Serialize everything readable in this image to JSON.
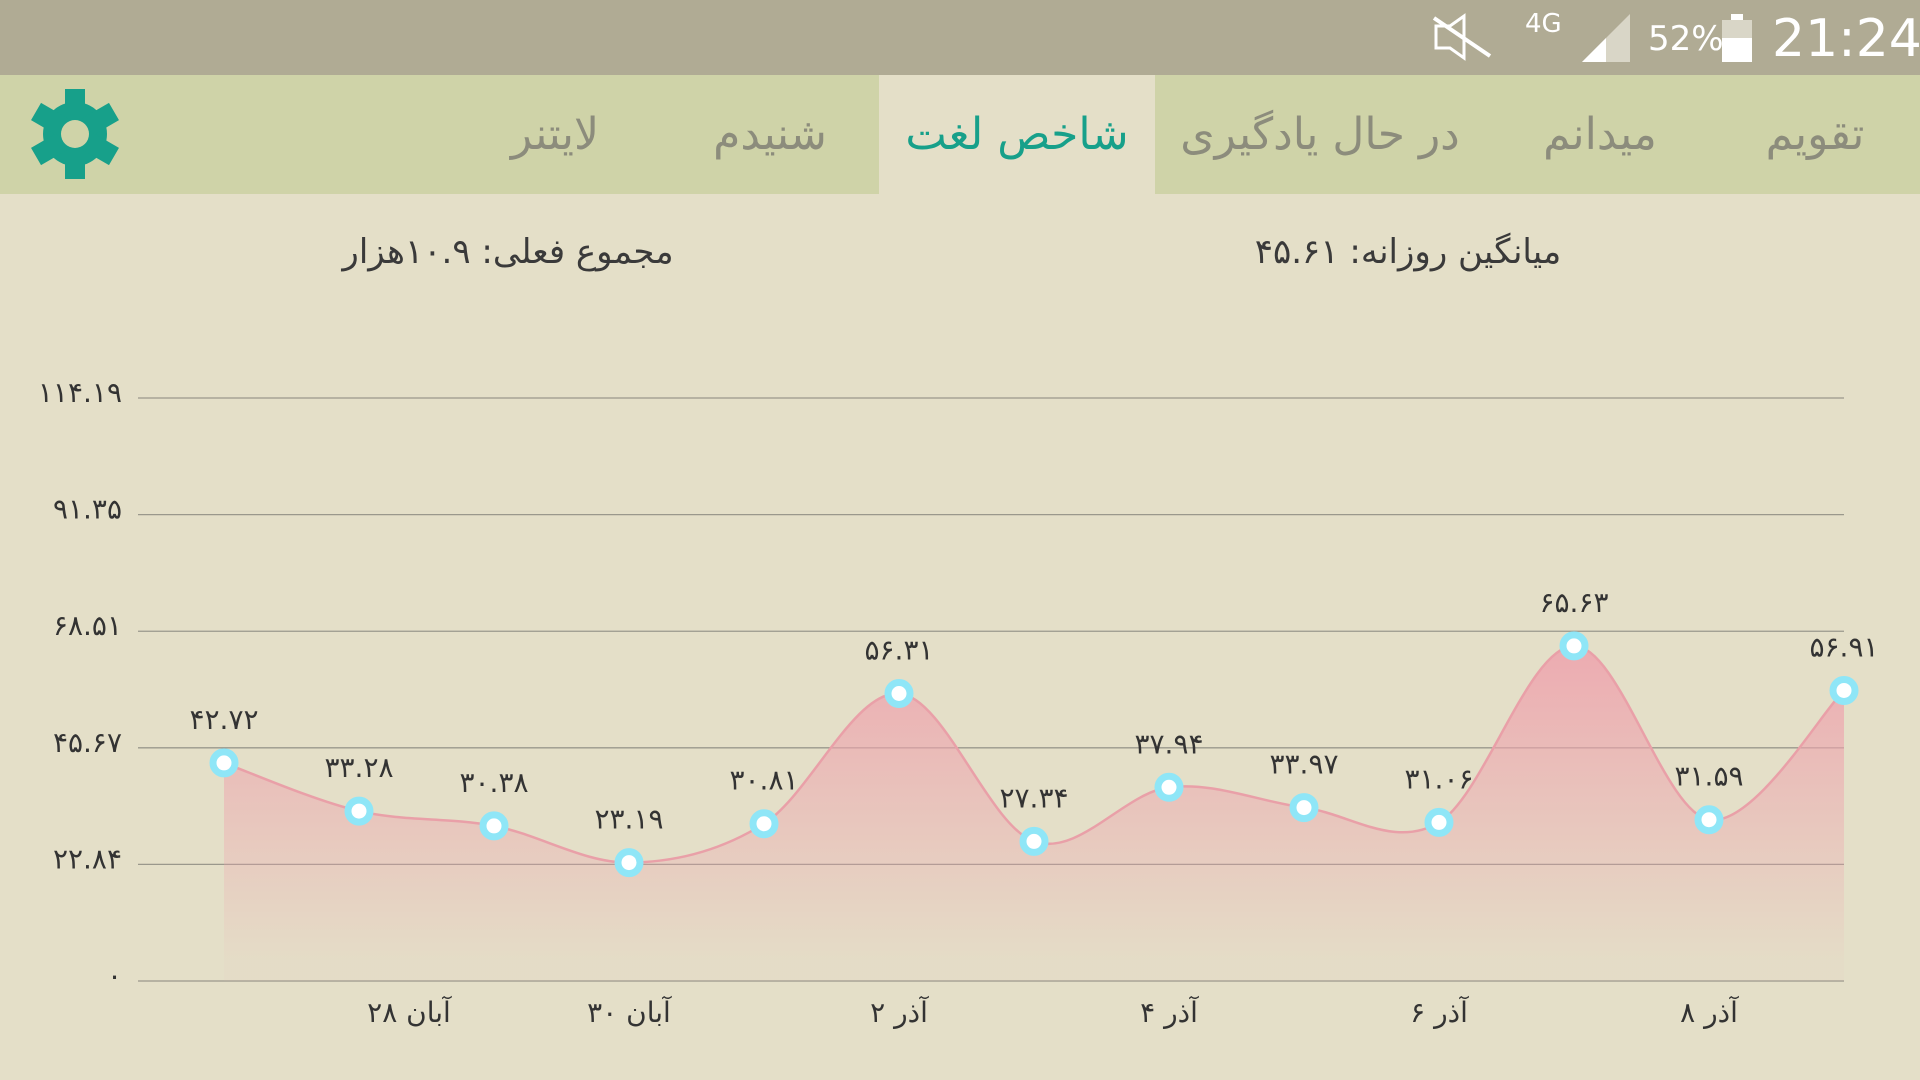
{
  "status_bar": {
    "network": "4G",
    "battery": "52%",
    "time": "21:24"
  },
  "tabs": [
    "تقویم",
    "میدانم",
    "در حال یادگیری",
    "شاخص لغت",
    "شنیدم",
    "لایتنر"
  ],
  "stats": {
    "daily_average": "میانگین روزانه: ۴۵.۶۱",
    "current_total": "مجموع فعلی: ۱۰.۹هزار"
  },
  "chart_data": {
    "type": "area",
    "categories": [
      null,
      "۲۸ آبان",
      null,
      "۳۰ آبان",
      null,
      "۲ آذر",
      null,
      "۴ آذر",
      null,
      "۶ آذر",
      null,
      "۸ آذر",
      null
    ],
    "values": [
      42.72,
      33.28,
      30.38,
      23.19,
      30.81,
      56.31,
      27.34,
      37.94,
      33.97,
      31.06,
      65.63,
      31.59,
      56.91
    ],
    "value_labels": [
      "۴۲.۷۲",
      "۳۳.۲۸",
      "۳۰.۳۸",
      "۲۳.۱۹",
      "۳۰.۸۱",
      "۵۶.۳۱",
      "۲۷.۳۴",
      "۳۷.۹۴",
      "۳۳.۹۷",
      "۳۱.۰۶",
      "۶۵.۶۳",
      "۳۱.۵۹",
      "۵۶.۹۱"
    ],
    "color": "#e9a0a8",
    "ylim": [
      0,
      114.19
    ],
    "yticks": [
      {
        "value": 0,
        "label": "۰"
      },
      {
        "value": 22.84,
        "label": "۲۲.۸۴"
      },
      {
        "value": 45.67,
        "label": "۴۵.۶۷"
      },
      {
        "value": 68.51,
        "label": "۶۸.۵۱"
      },
      {
        "value": 91.35,
        "label": "۹۱.۳۵"
      },
      {
        "value": 114.19,
        "label": "۱۱۴.۱۹"
      }
    ],
    "grid": true
  }
}
